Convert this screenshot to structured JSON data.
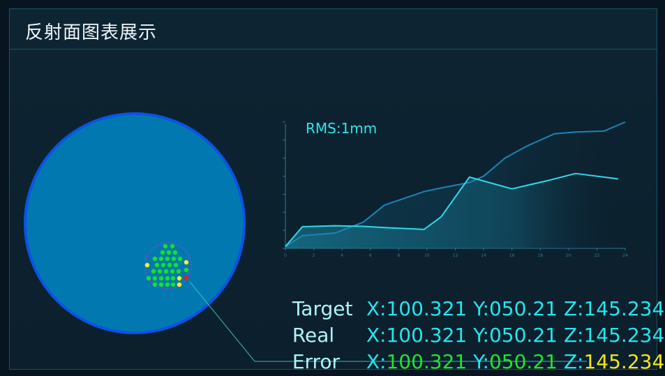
{
  "header": {
    "title": "反射面图表展示"
  },
  "colors": {
    "mirror_fill": "#0179b0",
    "mirror_border": "#0a53e6",
    "ok_point": "#19e021",
    "warn_point": "#f5ef1d",
    "error_point": "#f21a1a",
    "cyan": "#23e6ee"
  },
  "points_summary": {
    "green": 29,
    "yellow": 4,
    "red": 1
  },
  "chart": {
    "rms_label": "RMS:1mm"
  },
  "chart_data": {
    "type": "area",
    "title": "RMS:1mm",
    "x_ticks": [
      "0",
      "2",
      "4",
      "6",
      "8",
      "10",
      "12",
      "14",
      "16",
      "18",
      "20",
      "22",
      "24"
    ],
    "xlim": [
      0,
      24
    ],
    "ylim": [
      0,
      7
    ],
    "grid": false,
    "series": [
      {
        "x": [
          0,
          1.2,
          3.5,
          5.5,
          7,
          9.8,
          11,
          13,
          16,
          18.5,
          20.5,
          23.5
        ],
        "y": [
          0.1,
          1.2,
          1.25,
          1.22,
          1.15,
          1.05,
          1.75,
          3.95,
          3.3,
          3.75,
          4.15,
          3.85
        ]
      },
      {
        "x": [
          0,
          1.2,
          3.5,
          5.5,
          7,
          9.8,
          11,
          13,
          14,
          15.5,
          17,
          19,
          20.5,
          22.5,
          24
        ],
        "y": [
          0.1,
          0.7,
          0.85,
          1.45,
          2.4,
          3.15,
          3.35,
          3.65,
          4.0,
          5.0,
          5.65,
          6.35,
          6.45,
          6.5,
          7.0
        ]
      }
    ]
  },
  "coords": {
    "target": {
      "name": "Target",
      "x": "100.321",
      "y": "050.21",
      "z": "145.234"
    },
    "real": {
      "name": "Real",
      "x": "100.321",
      "y": "050.21",
      "z": "145.234"
    },
    "error": {
      "name": "Error",
      "x": "100.321",
      "y": "050.21",
      "z": "145.234"
    },
    "key_x": "X:",
    "key_y": "Y:",
    "key_z": "Z:"
  }
}
